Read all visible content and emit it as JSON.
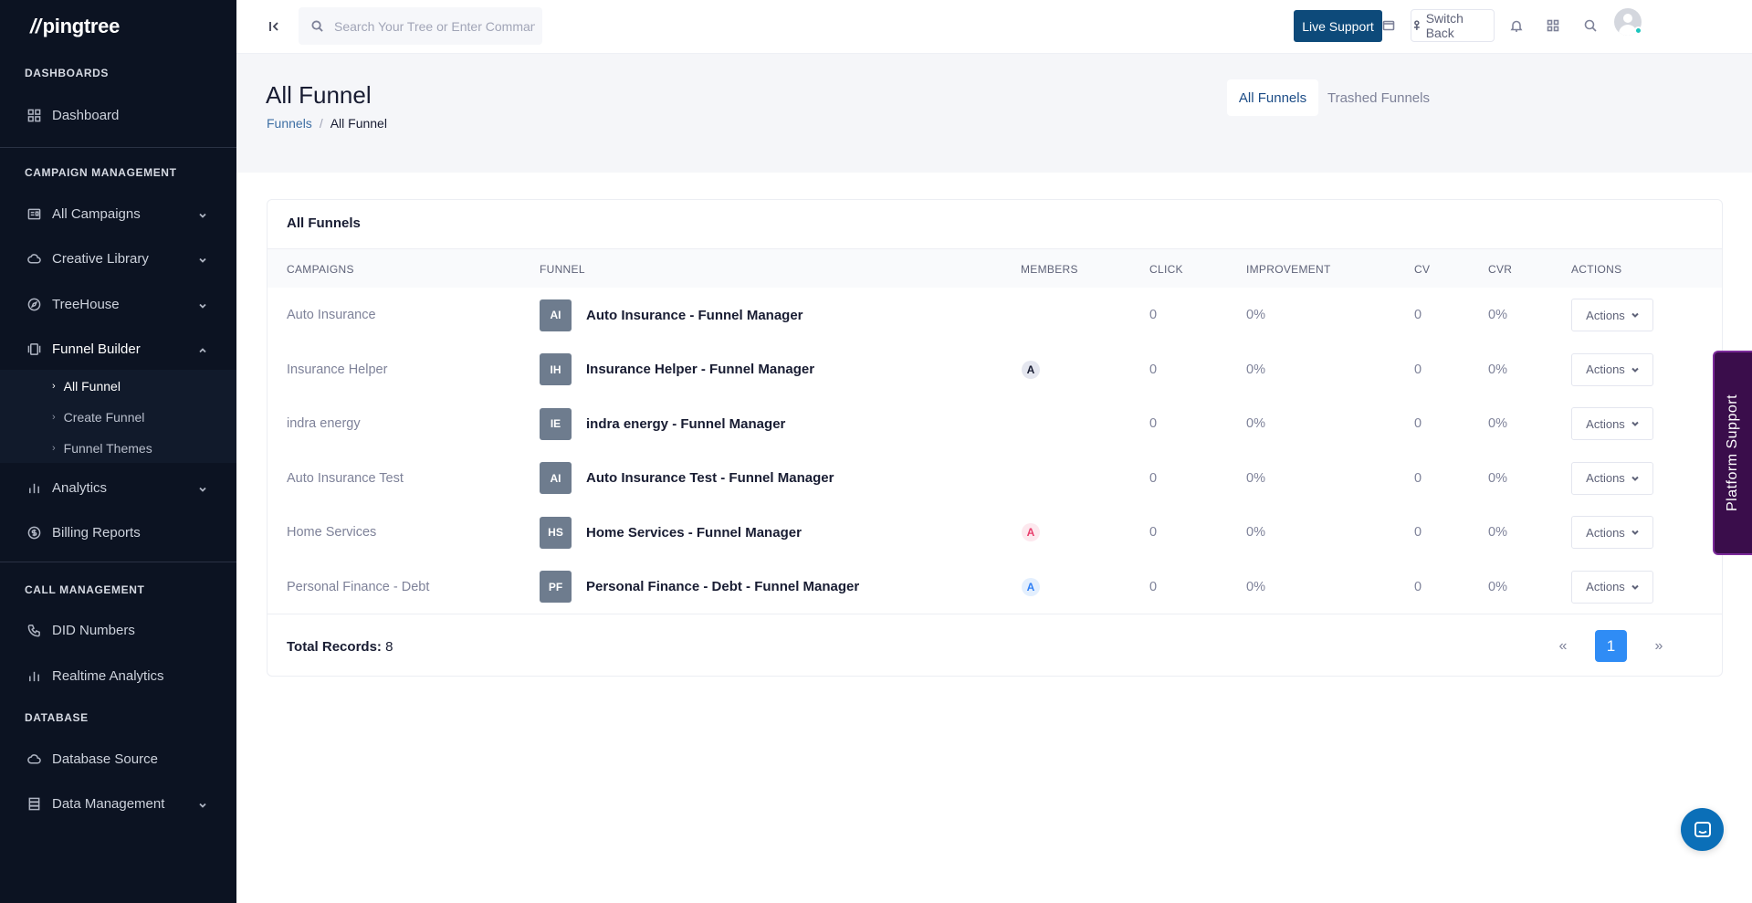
{
  "brand": {
    "logo_text": "pingtree"
  },
  "sidebar": {
    "sections": {
      "dashboards": "DASHBOARDS",
      "campaign_management": "CAMPAIGN MANAGEMENT",
      "call_management": "CALL MANAGEMENT",
      "database": "DATABASE"
    },
    "items": {
      "dashboard": "Dashboard",
      "all_campaigns": "All Campaigns",
      "creative_library": "Creative Library",
      "treehouse": "TreeHouse",
      "funnel_builder": "Funnel Builder",
      "analytics": "Analytics",
      "billing_reports": "Billing Reports",
      "did_numbers": "DID Numbers",
      "realtime_analytics": "Realtime Analytics",
      "database_source": "Database Source",
      "data_management": "Data Management"
    },
    "funnel_submenu": [
      "All Funnel",
      "Create Funnel",
      "Funnel Themes"
    ]
  },
  "topbar": {
    "search_placeholder": "Search Your Tree or Enter Command",
    "live_support": "Live Support",
    "switch_back": "Switch Back"
  },
  "page": {
    "title": "All Funnel",
    "breadcrumb": {
      "parent": "Funnels",
      "sep": "/",
      "current": "All Funnel"
    },
    "tabs": {
      "all": "All Funnels",
      "trashed": "Trashed Funnels"
    }
  },
  "table": {
    "title": "All Funnels",
    "headers": {
      "campaigns": "CAMPAIGNS",
      "funnel": "FUNNEL",
      "members": "MEMBERS",
      "click": "CLICK",
      "improvement": "IMPROVEMENT",
      "cv": "CV",
      "cvr": "CVR",
      "actions": "ACTIONS"
    },
    "rows": [
      {
        "campaign": "Auto Insurance",
        "initials": "AI",
        "funnel": "Auto Insurance - Funnel Manager",
        "member": "",
        "click": "0",
        "improvement": "0%",
        "cv": "0",
        "cvr": "0%",
        "action": "Actions"
      },
      {
        "campaign": "Insurance Helper",
        "initials": "IH",
        "funnel": "Insurance Helper - Funnel Manager",
        "member": "A",
        "click": "0",
        "improvement": "0%",
        "cv": "0",
        "cvr": "0%",
        "action": "Actions"
      },
      {
        "campaign": "indra energy",
        "initials": "IE",
        "funnel": "indra energy - Funnel Manager",
        "member": "",
        "click": "0",
        "improvement": "0%",
        "cv": "0",
        "cvr": "0%",
        "action": "Actions"
      },
      {
        "campaign": "Auto Insurance Test",
        "initials": "AI",
        "funnel": "Auto Insurance Test - Funnel Manager",
        "member": "",
        "click": "0",
        "improvement": "0%",
        "cv": "0",
        "cvr": "0%",
        "action": "Actions"
      },
      {
        "campaign": "Home Services",
        "initials": "HS",
        "funnel": "Home Services - Funnel Manager",
        "member": "A",
        "click": "0",
        "improvement": "0%",
        "cv": "0",
        "cvr": "0%",
        "action": "Actions"
      },
      {
        "campaign": "Personal Finance - Debt",
        "initials": "PF",
        "funnel": "Personal Finance - Debt - Funnel Manager",
        "member": "A",
        "click": "0",
        "improvement": "0%",
        "cv": "0",
        "cvr": "0%",
        "action": "Actions"
      }
    ],
    "member_colors": [
      {
        "bg": "#e4e6ef",
        "fg": "#181c32"
      },
      {
        "bg": "#fde8ee",
        "fg": "#e83e6c"
      },
      {
        "bg": "#e3effe",
        "fg": "#2f7ff5"
      }
    ],
    "footer": {
      "total_label": "Total Records:",
      "total_value": "8",
      "prev": "«",
      "current_page": "1",
      "next": "»"
    }
  },
  "platform_support": "Platform Support",
  "colors": {
    "sidebar_bg": "#0c1322",
    "primary": "#0d4a7a",
    "accent_blue": "#2f8cf5",
    "platform_purple": "#3a0d4b"
  }
}
